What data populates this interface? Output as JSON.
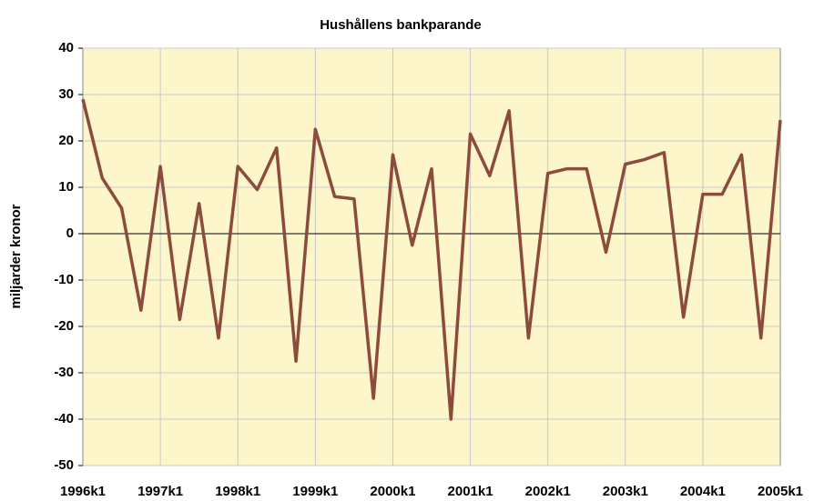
{
  "chart_data": {
    "type": "line",
    "title": "Hushållens bankparande",
    "y_label": "miljarder kronor",
    "categories": [
      "1996k1",
      null,
      null,
      null,
      "1997k1",
      null,
      null,
      null,
      "1998k1",
      null,
      null,
      null,
      "1999k1",
      null,
      null,
      null,
      "2000k1",
      null,
      null,
      null,
      "2001k1",
      null,
      null,
      null,
      "2002k1",
      null,
      null,
      null,
      "2003k1",
      null,
      null,
      null,
      "2004k1",
      null,
      null,
      null,
      "2005k1"
    ],
    "series": [
      {
        "name": "Hushållens bankparande",
        "color": "#8c4b3c",
        "values": [
          29,
          12,
          5.5,
          -16.5,
          14.5,
          -18.5,
          6.5,
          -22.5,
          14.5,
          9.5,
          18.5,
          -27.5,
          22.5,
          8,
          7.5,
          -35.5,
          17,
          -2.5,
          14,
          -40,
          21.5,
          12.5,
          26.5,
          -22.5,
          13,
          14,
          14,
          -4,
          15,
          16,
          17.5,
          -18,
          8.5,
          8.5,
          17,
          -22.5,
          24.5
        ]
      }
    ],
    "ylim": [
      -50,
      40
    ],
    "yticks": [
      -50,
      -40,
      -30,
      -20,
      -10,
      0,
      10,
      20,
      30,
      40
    ],
    "grid": true,
    "plot_background": "#fdf6cb"
  }
}
